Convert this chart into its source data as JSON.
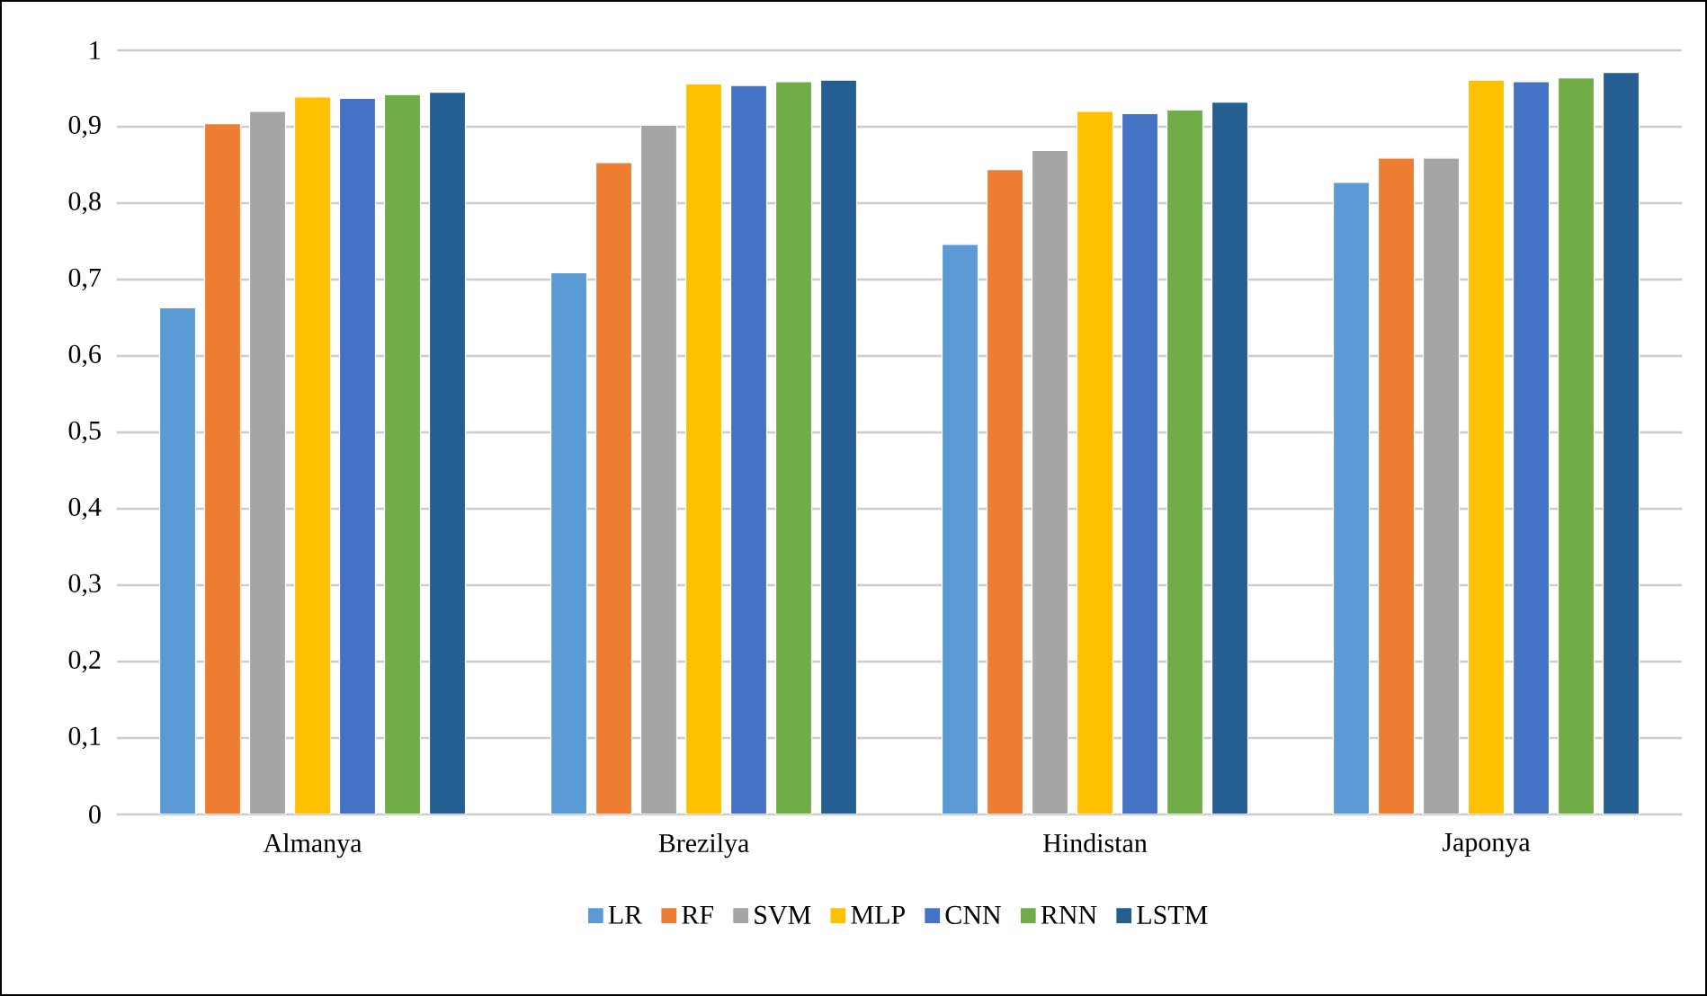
{
  "chart_data": {
    "type": "bar",
    "categories": [
      "Almanya",
      "Brezilya",
      "Hindistan",
      "Japonya"
    ],
    "series": [
      {
        "name": "LR",
        "color": "#5b9bd5",
        "values": [
          0.663,
          0.709,
          0.746,
          0.827
        ]
      },
      {
        "name": "RF",
        "color": "#ed7d31",
        "values": [
          0.904,
          0.853,
          0.844,
          0.859
        ]
      },
      {
        "name": "SVM",
        "color": "#a5a5a5",
        "values": [
          0.92,
          0.902,
          0.869,
          0.859
        ]
      },
      {
        "name": "MLP",
        "color": "#ffc000",
        "values": [
          0.939,
          0.956,
          0.92,
          0.961
        ]
      },
      {
        "name": "CNN",
        "color": "#4472c4",
        "values": [
          0.937,
          0.954,
          0.917,
          0.959
        ]
      },
      {
        "name": "RNN",
        "color": "#70ad47",
        "values": [
          0.942,
          0.959,
          0.922,
          0.964
        ]
      },
      {
        "name": "LSTM",
        "color": "#255e91",
        "values": [
          0.945,
          0.961,
          0.932,
          0.971
        ]
      }
    ],
    "ylim": [
      0,
      1
    ],
    "yticks": [
      0,
      {
        "value": 0.1,
        "label": "0,1"
      },
      {
        "value": 0.2,
        "label": "0,2"
      },
      {
        "value": 0.3,
        "label": "0,3"
      },
      {
        "value": 0.4,
        "label": "0,4"
      },
      {
        "value": 0.5,
        "label": "0,5"
      },
      {
        "value": 0.6,
        "label": "0,6"
      },
      {
        "value": 0.7,
        "label": "0,7"
      },
      {
        "value": 0.8,
        "label": "0,8"
      },
      {
        "value": 0.9,
        "label": "0,9"
      },
      1
    ],
    "grid": "y",
    "legend": "bottom"
  }
}
